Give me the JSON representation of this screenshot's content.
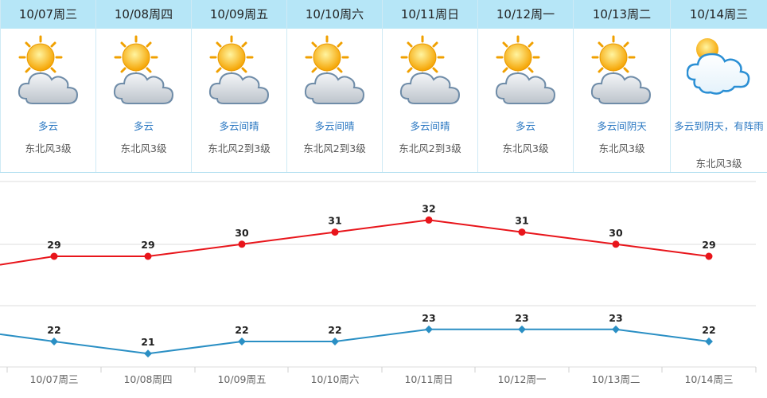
{
  "days": [
    {
      "date": "10/07周三",
      "desc": "多云",
      "wind": "东北风3级",
      "icon": "sun-cloud"
    },
    {
      "date": "10/08周四",
      "desc": "多云",
      "wind": "东北风3级",
      "icon": "sun-cloud"
    },
    {
      "date": "10/09周五",
      "desc": "多云间晴",
      "wind": "东北风2到3级",
      "icon": "sun-cloud"
    },
    {
      "date": "10/10周六",
      "desc": "多云间晴",
      "wind": "东北风2到3级",
      "icon": "sun-cloud"
    },
    {
      "date": "10/11周日",
      "desc": "多云间晴",
      "wind": "东北风2到3级",
      "icon": "sun-cloud"
    },
    {
      "date": "10/12周一",
      "desc": "多云",
      "wind": "东北风3级",
      "icon": "sun-cloud"
    },
    {
      "date": "10/13周二",
      "desc": "多云间阴天",
      "wind": "东北风3级",
      "icon": "sun-cloud"
    },
    {
      "date": "10/14周三",
      "desc": "多云到阴天，有阵雨",
      "wind": "东北风3级",
      "icon": "cloud"
    }
  ],
  "chart_data": {
    "type": "line",
    "categories": [
      "10/07周三",
      "10/08周四",
      "10/09周五",
      "10/10周六",
      "10/11周日",
      "10/12周一",
      "10/13周二",
      "10/14周三"
    ],
    "series": [
      {
        "values": [
          29,
          29,
          30,
          31,
          32,
          31,
          30,
          29
        ],
        "color": "#e8151b",
        "marker": "circle"
      },
      {
        "values": [
          22,
          21,
          22,
          22,
          23,
          23,
          23,
          22
        ],
        "color": "#2a8fc4",
        "marker": "diamond"
      }
    ],
    "xlabel": "",
    "ylabel": "",
    "grid": true,
    "legend": "none"
  }
}
